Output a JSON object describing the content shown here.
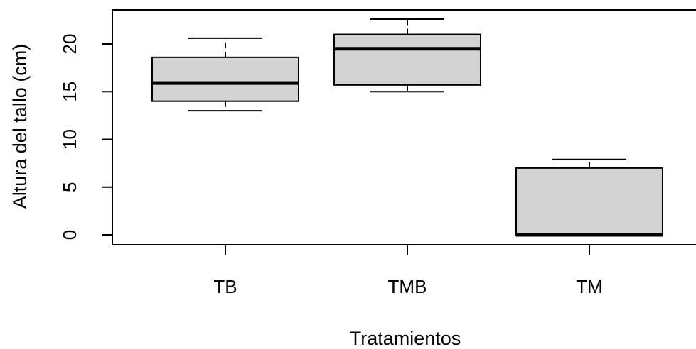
{
  "chart_data": {
    "type": "boxplot",
    "title": "",
    "xlabel": "Tratamientos",
    "ylabel": "Altura del tallo (cm)",
    "ylim": [
      -1,
      23
    ],
    "yticks": [
      0,
      5,
      10,
      15,
      20
    ],
    "categories": [
      "TB",
      "TMB",
      "TM"
    ],
    "boxes": [
      {
        "category": "TB",
        "whisker_low": 13,
        "q1": 14,
        "median": 15.9,
        "q3": 18.6,
        "whisker_high": 20.6
      },
      {
        "category": "TMB",
        "whisker_low": 15,
        "q1": 15.7,
        "median": 19.5,
        "q3": 21,
        "whisker_high": 22.6
      },
      {
        "category": "TM",
        "whisker_low": 0,
        "q1": 0,
        "median": 0,
        "q3": 7,
        "whisker_high": 7.9
      }
    ],
    "box_color": "#d3d3d3",
    "line_color": "#000000",
    "grid": false,
    "legend": "none"
  }
}
